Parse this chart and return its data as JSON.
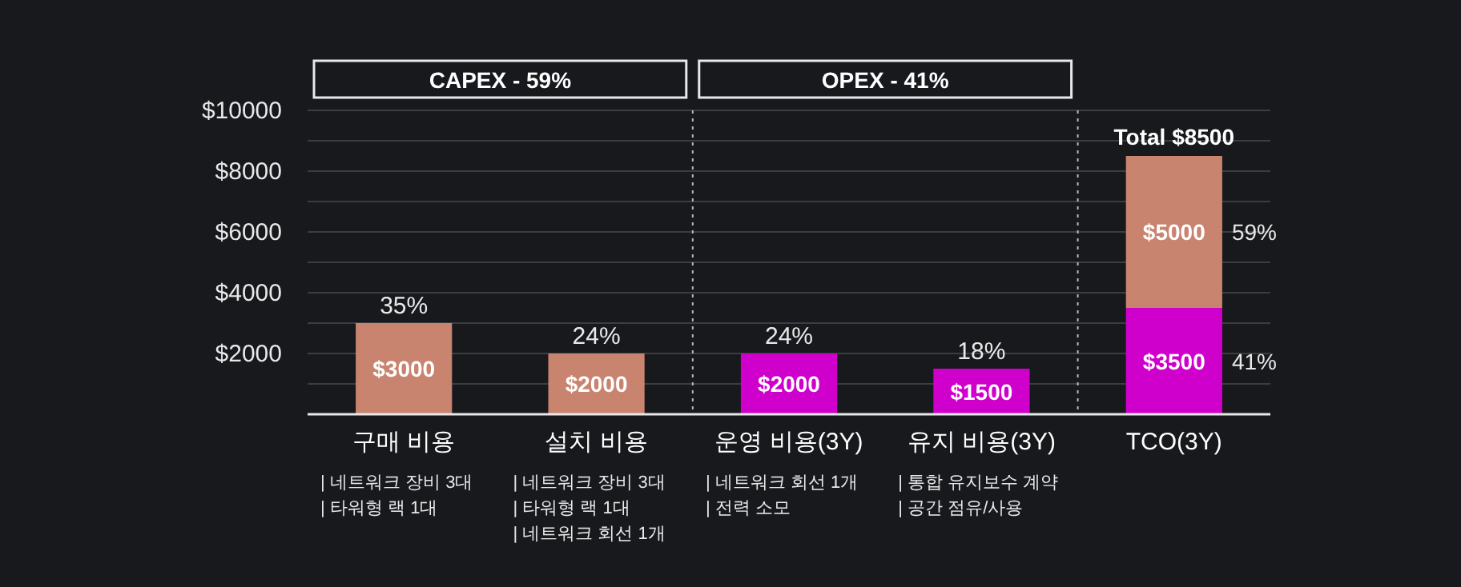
{
  "chart_data": {
    "type": "bar",
    "stacked": true,
    "categories": [
      "구매 비용",
      "설치 비용",
      "운영 비용(3Y)",
      "유지 비용(3Y)",
      "TCO(3Y)"
    ],
    "series": [
      {
        "color": "#d000cc",
        "values": [
          null,
          null,
          2000,
          1500,
          3500
        ],
        "value_labels": [
          null,
          null,
          "$2000",
          "$1500",
          "$3500"
        ]
      },
      {
        "color": "#c98470",
        "values": [
          3000,
          2000,
          null,
          null,
          5000
        ],
        "value_labels": [
          "$3000",
          "$2000",
          null,
          null,
          "$5000"
        ]
      }
    ],
    "totals": [
      null,
      null,
      null,
      null,
      "Total $8500"
    ],
    "ylim": [
      0,
      10000
    ],
    "yticks": [
      {
        "value": 1000,
        "label": null
      },
      {
        "value": 2000,
        "label": "$2000"
      },
      {
        "value": 3000,
        "label": null
      },
      {
        "value": 4000,
        "label": "$4000"
      },
      {
        "value": 5000,
        "label": null
      },
      {
        "value": 6000,
        "label": "$6000"
      },
      {
        "value": 7000,
        "label": null
      },
      {
        "value": 8000,
        "label": "$8000"
      },
      {
        "value": 9000,
        "label": null
      },
      {
        "value": 10000,
        "label": "$10000"
      }
    ],
    "grid": "y",
    "annotations": [
      "CAPEX - 59%",
      "OPEX - 41%",
      {
        "text": "35%",
        "x": "구매 비용",
        "y": 3000
      },
      {
        "text": "24%",
        "x": "설치 비용",
        "y": 2000
      },
      {
        "text": "24%",
        "x": "운영 비용(3Y)",
        "y": 2000
      },
      {
        "text": "18%",
        "x": "유지 비용(3Y)",
        "y": 1500
      },
      "41%",
      "59%",
      "| 네트워크 장비 3대\n| 타워형 랙 1대",
      "| 네트워크 장비 3대\n| 타워형 랙 1대\n| 네트워크 회선 1개",
      "| 네트워크 회선 1개\n| 전력 소모",
      "| 통합 유지보수 계약\n| 공간 점유/사용"
    ]
  }
}
